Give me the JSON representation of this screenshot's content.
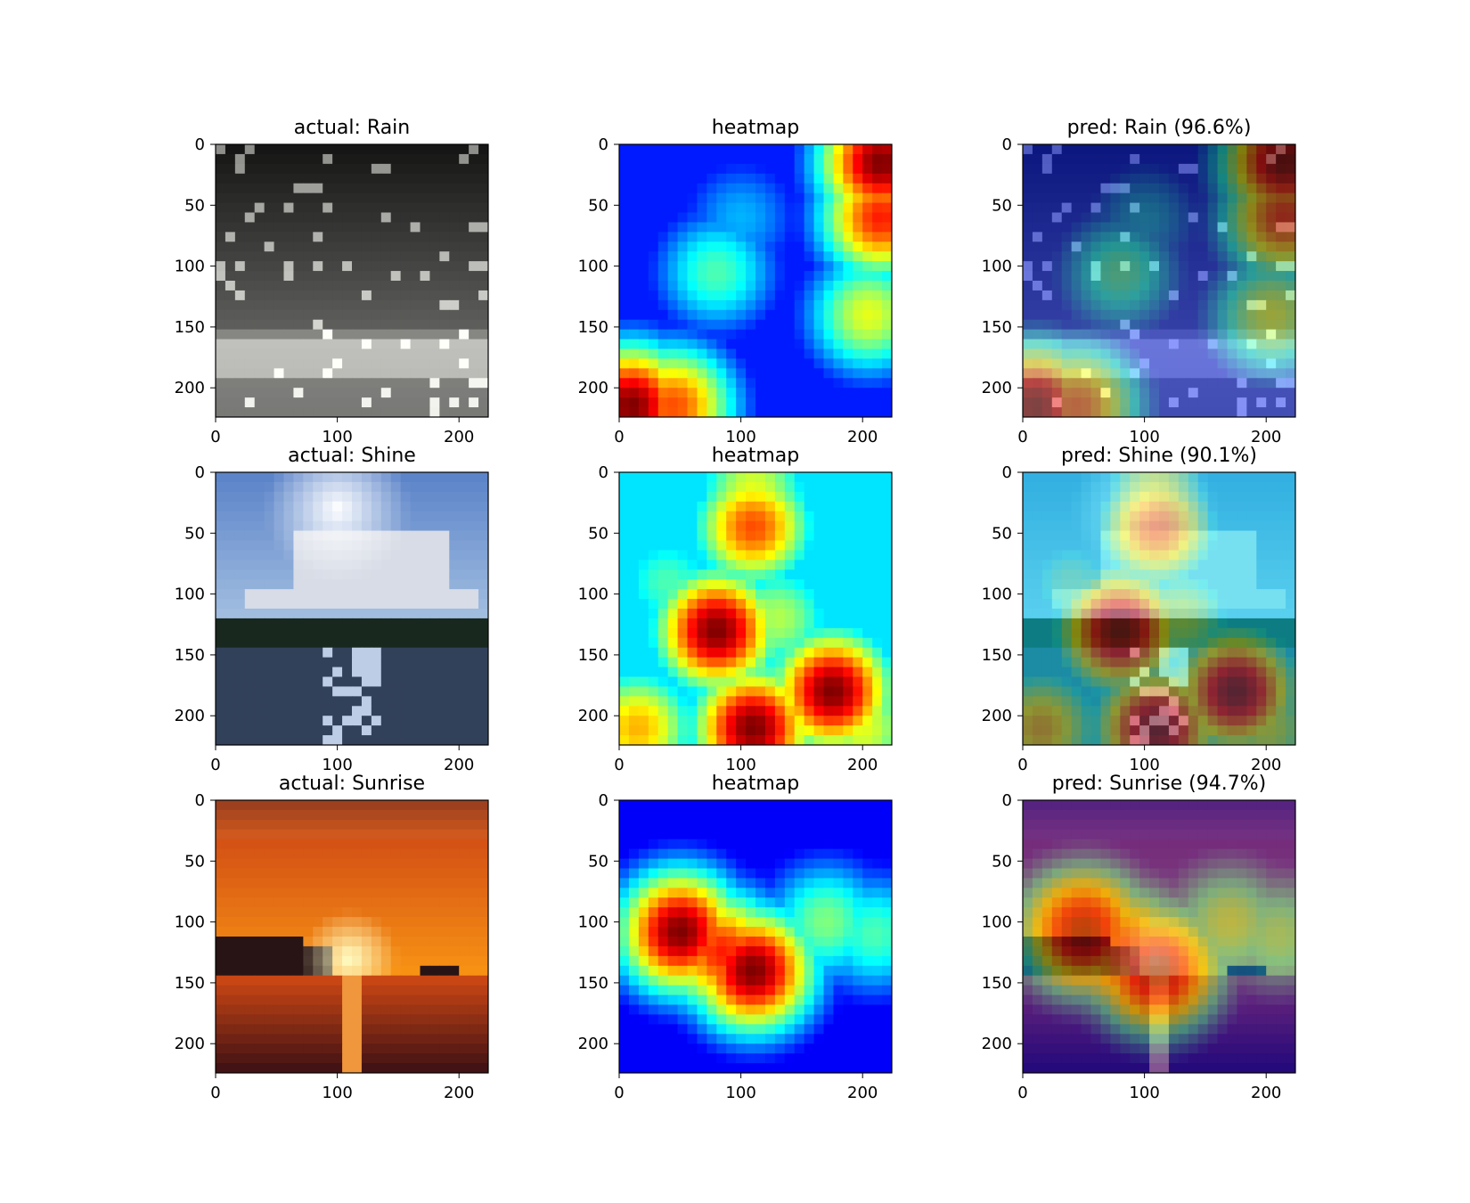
{
  "chart_data": [
    {
      "type": "heatmap",
      "panel": "image",
      "title": "actual: Rain",
      "scene": "rain",
      "xlim": [
        0,
        224
      ],
      "ylim": [
        224,
        0
      ],
      "xticks": [
        0,
        100,
        200
      ],
      "yticks": [
        0,
        50,
        100,
        150,
        200
      ]
    },
    {
      "type": "heatmap",
      "panel": "heatmap",
      "title": "heatmap",
      "xlim": [
        0,
        224
      ],
      "ylim": [
        224,
        0
      ],
      "xticks": [
        0,
        100,
        200
      ],
      "yticks": [
        0,
        50,
        100,
        150,
        200
      ],
      "hotspots": [
        {
          "x": 215,
          "y": 15,
          "v": 1.0
        },
        {
          "x": 215,
          "y": 60,
          "v": 0.85
        },
        {
          "x": 205,
          "y": 140,
          "v": 0.6
        },
        {
          "x": 10,
          "y": 215,
          "v": 1.0
        },
        {
          "x": 45,
          "y": 215,
          "v": 0.8
        },
        {
          "x": 80,
          "y": 105,
          "v": 0.45
        },
        {
          "x": 100,
          "y": 60,
          "v": 0.3
        }
      ],
      "base": 0.15
    },
    {
      "type": "heatmap",
      "panel": "overlay",
      "title": "pred: Rain (96.6%)",
      "scene": "rain",
      "heatmap_ref": 1,
      "xlim": [
        0,
        224
      ],
      "ylim": [
        224,
        0
      ],
      "xticks": [
        0,
        100,
        200
      ],
      "yticks": [
        0,
        50,
        100,
        150,
        200
      ]
    },
    {
      "type": "heatmap",
      "panel": "image",
      "title": "actual: Shine",
      "scene": "shine",
      "xlim": [
        0,
        224
      ],
      "ylim": [
        224,
        0
      ],
      "xticks": [
        0,
        100,
        200
      ],
      "yticks": [
        0,
        50,
        100,
        150,
        200
      ]
    },
    {
      "type": "heatmap",
      "panel": "heatmap",
      "title": "heatmap",
      "xlim": [
        0,
        224
      ],
      "ylim": [
        224,
        0
      ],
      "xticks": [
        0,
        100,
        200
      ],
      "yticks": [
        0,
        50,
        100,
        150,
        200
      ],
      "hotspots": [
        {
          "x": 110,
          "y": 45,
          "v": 0.8
        },
        {
          "x": 110,
          "y": 15,
          "v": 0.6
        },
        {
          "x": 80,
          "y": 130,
          "v": 1.0
        },
        {
          "x": 175,
          "y": 180,
          "v": 1.0
        },
        {
          "x": 110,
          "y": 210,
          "v": 1.0
        },
        {
          "x": 15,
          "y": 210,
          "v": 0.7
        },
        {
          "x": 130,
          "y": 120,
          "v": 0.55
        },
        {
          "x": 40,
          "y": 90,
          "v": 0.45
        },
        {
          "x": 200,
          "y": 210,
          "v": 0.6
        }
      ],
      "base": 0.35
    },
    {
      "type": "heatmap",
      "panel": "overlay",
      "title": "pred: Shine (90.1%)",
      "scene": "shine",
      "heatmap_ref": 4,
      "xlim": [
        0,
        224
      ],
      "ylim": [
        224,
        0
      ],
      "xticks": [
        0,
        100,
        200
      ],
      "yticks": [
        0,
        50,
        100,
        150,
        200
      ]
    },
    {
      "type": "heatmap",
      "panel": "image",
      "title": "actual: Sunrise",
      "scene": "sunrise",
      "xlim": [
        0,
        224
      ],
      "ylim": [
        224,
        0
      ],
      "xticks": [
        0,
        100,
        200
      ],
      "yticks": [
        0,
        50,
        100,
        150,
        200
      ]
    },
    {
      "type": "heatmap",
      "panel": "heatmap",
      "title": "heatmap",
      "xlim": [
        0,
        224
      ],
      "ylim": [
        224,
        0
      ],
      "xticks": [
        0,
        100,
        200
      ],
      "yticks": [
        0,
        50,
        100,
        150,
        200
      ],
      "hotspots": [
        {
          "x": 50,
          "y": 108,
          "v": 1.0
        },
        {
          "x": 110,
          "y": 140,
          "v": 1.0
        },
        {
          "x": 85,
          "y": 125,
          "v": 0.85
        },
        {
          "x": 170,
          "y": 100,
          "v": 0.5
        },
        {
          "x": 210,
          "y": 110,
          "v": 0.45
        }
      ],
      "base": 0.12
    },
    {
      "type": "heatmap",
      "panel": "overlay",
      "title": "pred: Sunrise (94.7%)",
      "scene": "sunrise",
      "heatmap_ref": 7,
      "xlim": [
        0,
        224
      ],
      "ylim": [
        224,
        0
      ],
      "xticks": [
        0,
        100,
        200
      ],
      "yticks": [
        0,
        50,
        100,
        150,
        200
      ]
    }
  ]
}
